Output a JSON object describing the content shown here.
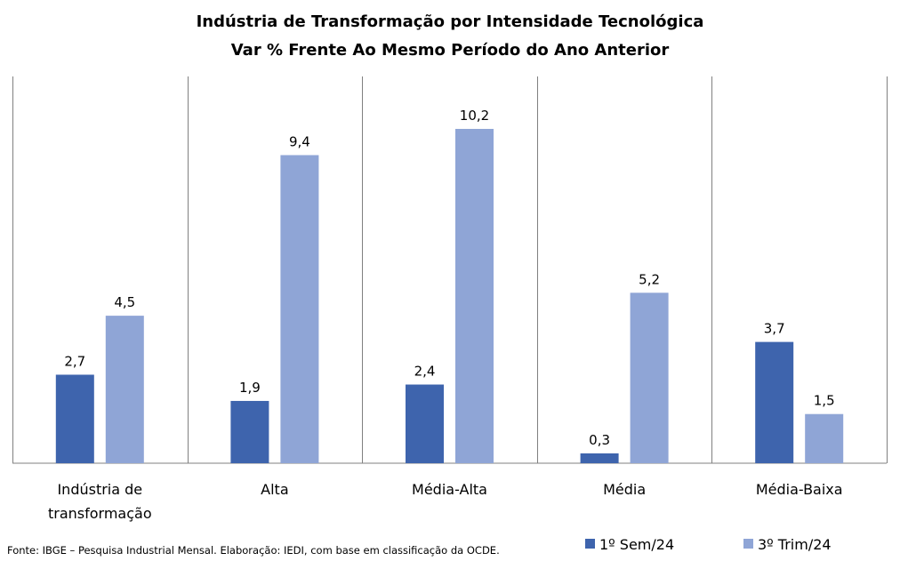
{
  "chart_data": {
    "type": "bar",
    "title": "Indústria de Transformação por Intensidade Tecnológica",
    "subtitle": "Var % Frente Ao Mesmo Período do Ano Anterior",
    "categories": [
      "Indústria de transformação",
      "Alta",
      "Média-Alta",
      "Média",
      "Média-Baixa"
    ],
    "category_lines": [
      [
        "Indústria de",
        "transformação"
      ],
      [
        "Alta"
      ],
      [
        "Média-Alta"
      ],
      [
        "Média"
      ],
      [
        "Média-Baixa"
      ]
    ],
    "series": [
      {
        "name": "1º Sem/24",
        "values": [
          2.7,
          1.9,
          2.4,
          0.3,
          3.7
        ],
        "labels": [
          "2,7",
          "1,9",
          "2,4",
          "0,3",
          "3,7"
        ],
        "color": "#3E64AD"
      },
      {
        "name": "3º Trim/24",
        "values": [
          4.5,
          9.4,
          10.2,
          5.2,
          1.5
        ],
        "labels": [
          "4,5",
          "9,4",
          "10,2",
          "5,2",
          "1,5"
        ],
        "color": "#8FA5D6"
      }
    ],
    "ylim": [
      0,
      11.8
    ],
    "grid": false,
    "legend": "bottom-right",
    "source": "Fonte: IBGE – Pesquisa Industrial Mensal. Elaboração: IEDI, com base em classificação da OCDE."
  }
}
